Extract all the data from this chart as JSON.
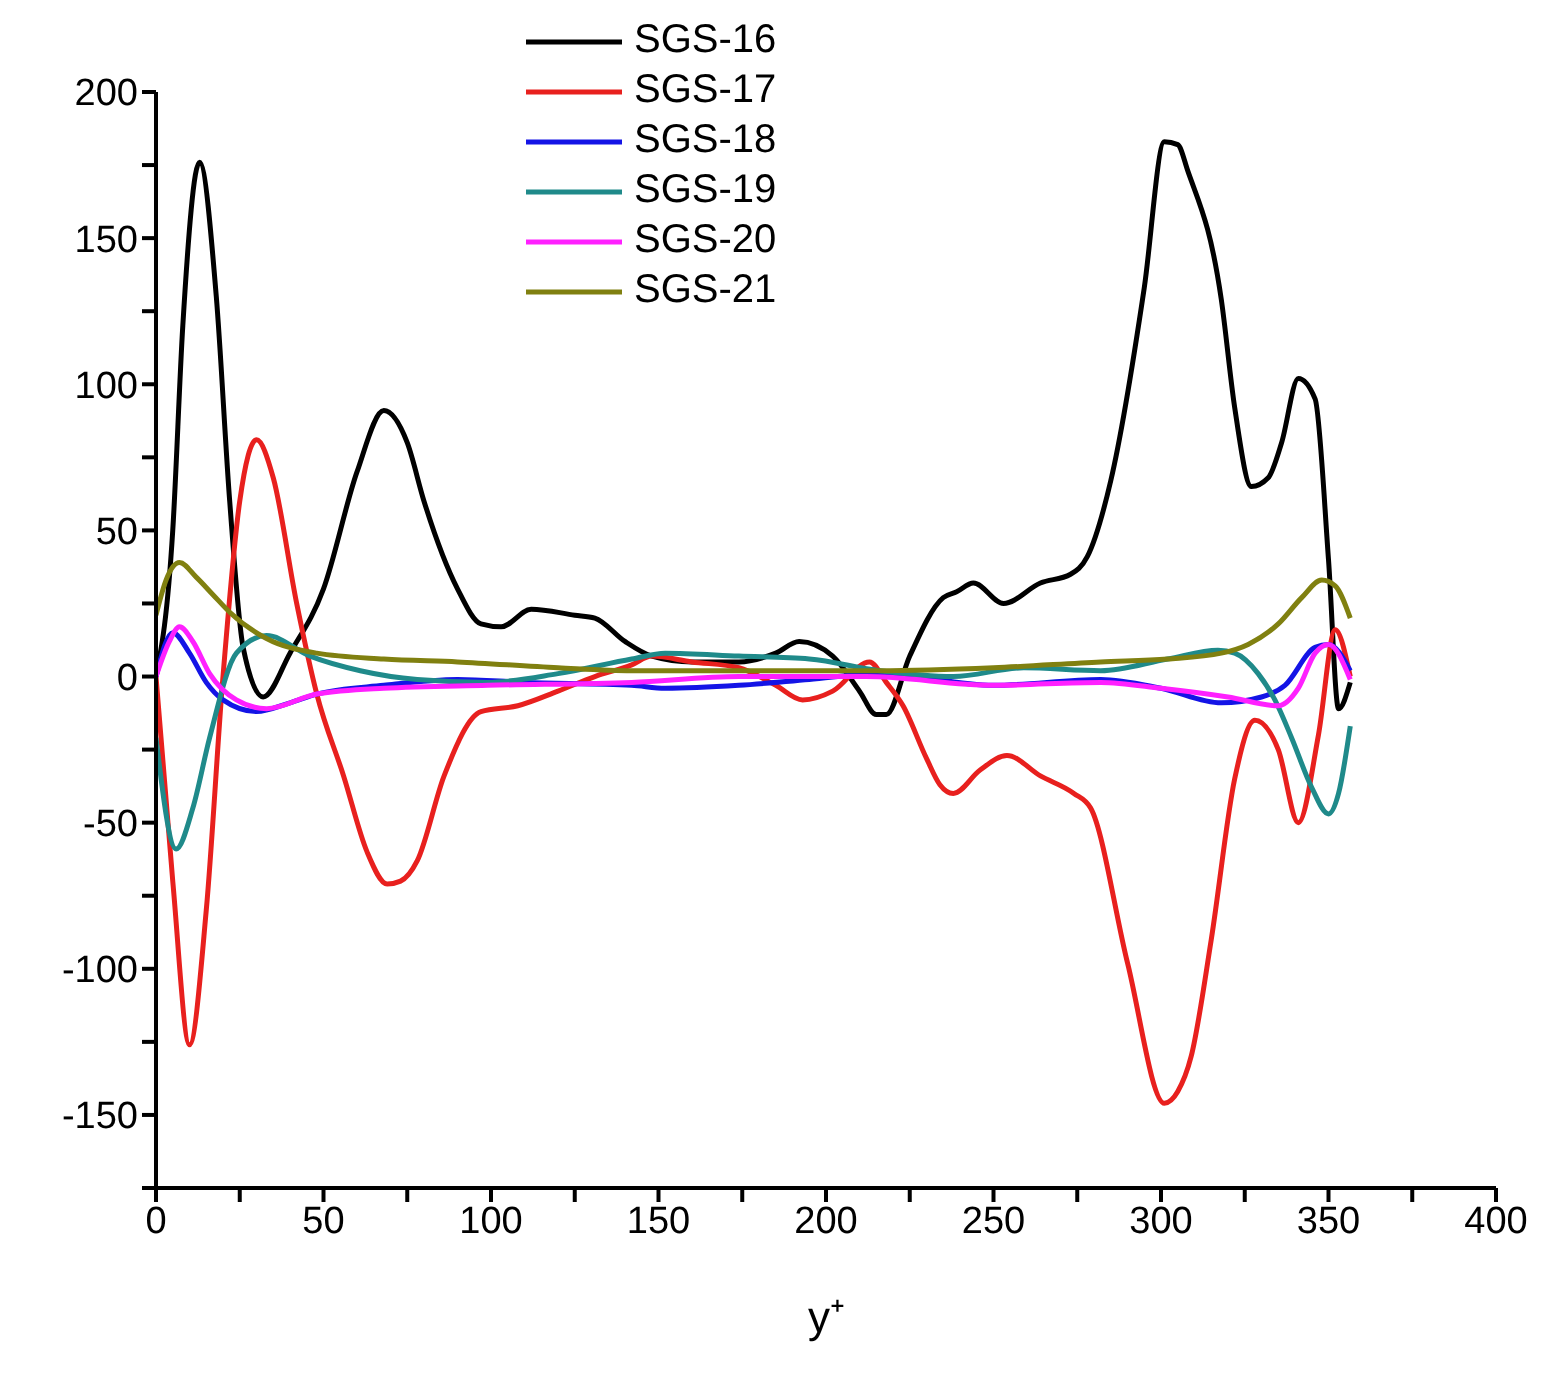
{
  "chart_data": {
    "type": "line",
    "xlabel": "y⁺",
    "xlim": [
      0,
      400
    ],
    "ylim": [
      -175,
      200
    ],
    "xticks": [
      0,
      {
        "value": 25,
        "label": null
      },
      50,
      {
        "value": 75,
        "label": null
      },
      100,
      {
        "value": 125,
        "label": null
      },
      150,
      {
        "value": 175,
        "label": null
      },
      200,
      {
        "value": 225,
        "label": null
      },
      250,
      {
        "value": 275,
        "label": null
      },
      300,
      {
        "value": 325,
        "label": null
      },
      350,
      {
        "value": 375,
        "label": null
      },
      400
    ],
    "yticks": [
      {
        "value": -175,
        "label": null
      },
      -150,
      {
        "value": -125,
        "label": null
      },
      -100,
      {
        "value": -75,
        "label": null
      },
      -50,
      {
        "value": -25,
        "label": null
      },
      0,
      {
        "value": 25,
        "label": null
      },
      50,
      {
        "value": 75,
        "label": null
      },
      100,
      {
        "value": 125,
        "label": null
      },
      150,
      {
        "value": 175,
        "label": null
      },
      200
    ],
    "legend": "top",
    "marker": "none",
    "line_style": "solid",
    "series": [
      {
        "name": "SGS-16",
        "color": "#000000",
        "x": [
          0,
          5,
          8,
          13,
          18,
          22,
          26,
          32,
          40,
          50,
          60,
          68,
          75,
          80,
          90,
          97,
          103,
          112,
          125,
          131,
          140,
          148,
          160,
          174,
          185,
          192,
          202,
          210,
          215,
          218,
          225,
          235,
          239,
          244,
          253,
          264,
          273,
          278,
          285,
          295,
          301,
          305,
          308,
          318,
          322,
          327,
          332,
          336,
          341,
          346,
          350,
          353,
          356.5
        ],
        "values": [
          0,
          50,
          120,
          176,
          130,
          60,
          10,
          -7,
          8,
          30,
          70,
          91,
          80,
          60,
          30,
          18,
          17,
          23,
          21,
          20,
          12,
          7,
          5,
          5,
          8,
          12,
          7,
          -5,
          -13,
          -13,
          7,
          27,
          29,
          32,
          25,
          32,
          35,
          41,
          67,
          133,
          183,
          182,
          173,
          129,
          92,
          65,
          68,
          80,
          102,
          95,
          40,
          -11,
          -2
        ]
      },
      {
        "name": "SGS-17",
        "color": "#e8201e",
        "x": [
          0,
          5,
          10,
          15,
          20,
          25,
          30,
          35,
          42,
          48,
          56,
          63,
          69,
          73,
          78,
          86,
          97,
          108,
          120,
          131,
          142,
          148,
          160,
          174,
          185,
          193,
          202,
          213,
          218,
          223,
          230,
          234,
          238,
          246,
          254,
          264,
          274,
          279,
          290,
          301,
          305,
          309,
          315,
          322,
          328,
          335,
          341,
          347,
          352,
          356.5
        ],
        "values": [
          0,
          -70,
          -126,
          -80,
          0,
          60,
          81,
          68,
          25,
          -6,
          -34,
          -60,
          -71,
          -70,
          -63,
          -34,
          -12,
          -10,
          -5,
          0,
          4,
          7,
          5,
          3,
          -3,
          -8,
          -5,
          5,
          -2,
          -10,
          -28,
          -37,
          -40,
          -32,
          -27,
          -34,
          -40,
          -45,
          -98,
          -146,
          -142,
          -130,
          -90,
          -35,
          -15,
          -25,
          -50,
          -20,
          16,
          0
        ]
      },
      {
        "name": "SGS-18",
        "color": "#1414e6",
        "x": [
          0,
          5,
          10,
          15,
          20,
          30,
          40,
          48,
          68,
          90,
          110,
          142,
          152,
          174,
          195,
          216,
          250,
          282,
          300,
          318,
          330,
          337,
          346,
          350,
          356.5
        ],
        "values": [
          0,
          15,
          8,
          -2,
          -8,
          -12,
          -9,
          -6,
          -3,
          -1,
          -2,
          -3,
          -4,
          -3,
          -1,
          1,
          -3,
          -1,
          -4,
          -9,
          -7,
          -3,
          10,
          11,
          2
        ]
      },
      {
        "name": "SGS-19",
        "color": "#1f8a8a",
        "x": [
          0,
          6,
          11,
          16,
          24,
          33,
          46,
          61,
          78,
          99,
          120,
          142,
          152,
          174,
          195,
          216,
          238,
          259,
          282,
          302,
          317,
          322,
          329,
          334,
          339,
          345,
          350,
          353,
          356.5
        ],
        "values": [
          -21,
          -59,
          -45,
          -21,
          8,
          14,
          7,
          2,
          -1,
          -2,
          1,
          6,
          8,
          7,
          6,
          2,
          0,
          3,
          2,
          6,
          9,
          8,
          1,
          -8,
          -21,
          -38,
          -47,
          -40,
          -17
        ]
      },
      {
        "name": "SGS-20",
        "color": "#ff20ff",
        "x": [
          0,
          4,
          7,
          11,
          16,
          24,
          33,
          48,
          68,
          99,
          142,
          174,
          212,
          250,
          282,
          300,
          320,
          335,
          341,
          346,
          350,
          356.5
        ],
        "values": [
          0,
          12,
          17,
          12,
          1,
          -8,
          -11,
          -6,
          -4,
          -3,
          -2,
          0,
          0,
          -3,
          -2,
          -4,
          -7,
          -10,
          -4,
          8,
          11,
          -1
        ]
      },
      {
        "name": "SGS-21",
        "color": "#808010",
        "x": [
          0,
          3,
          7,
          12,
          17,
          22,
          33,
          48,
          68,
          90,
          120,
          142,
          174,
          216,
          250,
          282,
          302,
          318,
          326,
          335,
          342,
          348,
          352,
          356.5
        ],
        "values": [
          21,
          33,
          39,
          34,
          28,
          22,
          13,
          8,
          6,
          5,
          3,
          2,
          2,
          2,
          3,
          5,
          6,
          8,
          11,
          18,
          27,
          33,
          31,
          20
        ]
      }
    ]
  }
}
